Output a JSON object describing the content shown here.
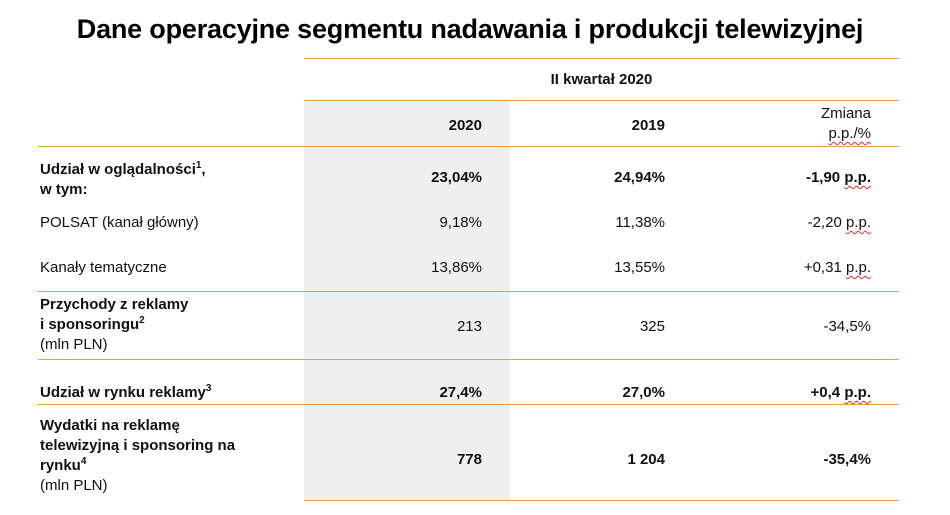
{
  "title": "Dane operacyjne segmentu nadawania i produkcji telewizyjnej",
  "header": {
    "period": "II kwartał 2020",
    "col_2020": "2020",
    "col_2019": "2019",
    "col_change_line1": "Zmiana",
    "col_change_line2": "p.p./%"
  },
  "rows": [
    {
      "label": "Udział w oglądalności",
      "sup": "1",
      "label_suffix": ",",
      "label_line2": "w tym:",
      "v2020": "23,04%",
      "v2019": "24,94%",
      "change": "-1,90",
      "change_unit": "p.p."
    },
    {
      "label": "POLSAT (kanał główny)",
      "v2020": "9,18%",
      "v2019": "11,38%",
      "change": "-2,20",
      "change_unit": "p.p."
    },
    {
      "label": "Kanały tematyczne",
      "v2020": "13,86%",
      "v2019": "13,55%",
      "change": "+0,31",
      "change_unit": "p.p."
    },
    {
      "label_line1": "Przychody z reklamy",
      "label_line2": "i sponsoringu",
      "sup": "2",
      "label_line3": "(mln PLN)",
      "v2020": "213",
      "v2019": "325",
      "change": "-34,5%"
    },
    {
      "label": "Udział w rynku reklamy",
      "sup": "3",
      "v2020": "27,4%",
      "v2019": "27,0%",
      "change": "+0,4",
      "change_unit": "p.p."
    },
    {
      "label_line1": "Wydatki na reklamę",
      "label_line2": "telewizyjną i sponsoring na",
      "label_line3": "rynku",
      "sup": "4",
      "label_line4": "(mln PLN)",
      "v2020": "778",
      "v2019": "1 204",
      "change": "-35,4%"
    }
  ],
  "colors": {
    "rule": "#e3a23a",
    "shade": "#efefef",
    "spellcheck": "#e03030"
  }
}
